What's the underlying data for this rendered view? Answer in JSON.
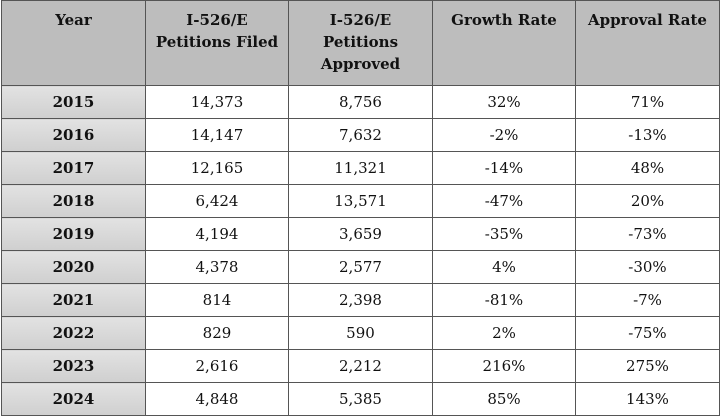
{
  "table": {
    "header": [
      [
        "Year"
      ],
      [
        "I-526/E",
        "Petitions Filed"
      ],
      [
        "I-526/E",
        "Petitions",
        "Approved"
      ],
      [
        "Growth Rate"
      ],
      [
        "Approval Rate"
      ]
    ],
    "rows": [
      [
        "2015",
        "14,373",
        "8,756",
        "32%",
        "71%"
      ],
      [
        "2016",
        "14,147",
        "7,632",
        "-2%",
        "-13%"
      ],
      [
        "2017",
        "12,165",
        "11,321",
        "-14%",
        "48%"
      ],
      [
        "2018",
        "6,424",
        "13,571",
        "-47%",
        "20%"
      ],
      [
        "2019",
        "4,194",
        "3,659",
        "-35%",
        "-73%"
      ],
      [
        "2020",
        "4,378",
        "2,577",
        "4%",
        "-30%"
      ],
      [
        "2021",
        "814",
        "2,398",
        "-81%",
        "-7%"
      ],
      [
        "2022",
        "829",
        "590",
        "2%",
        "-75%"
      ],
      [
        "2023",
        "2,616",
        "2,212",
        "216%",
        "275%"
      ],
      [
        "2024",
        "4,848",
        "5,385",
        "85%",
        "143%"
      ]
    ]
  }
}
